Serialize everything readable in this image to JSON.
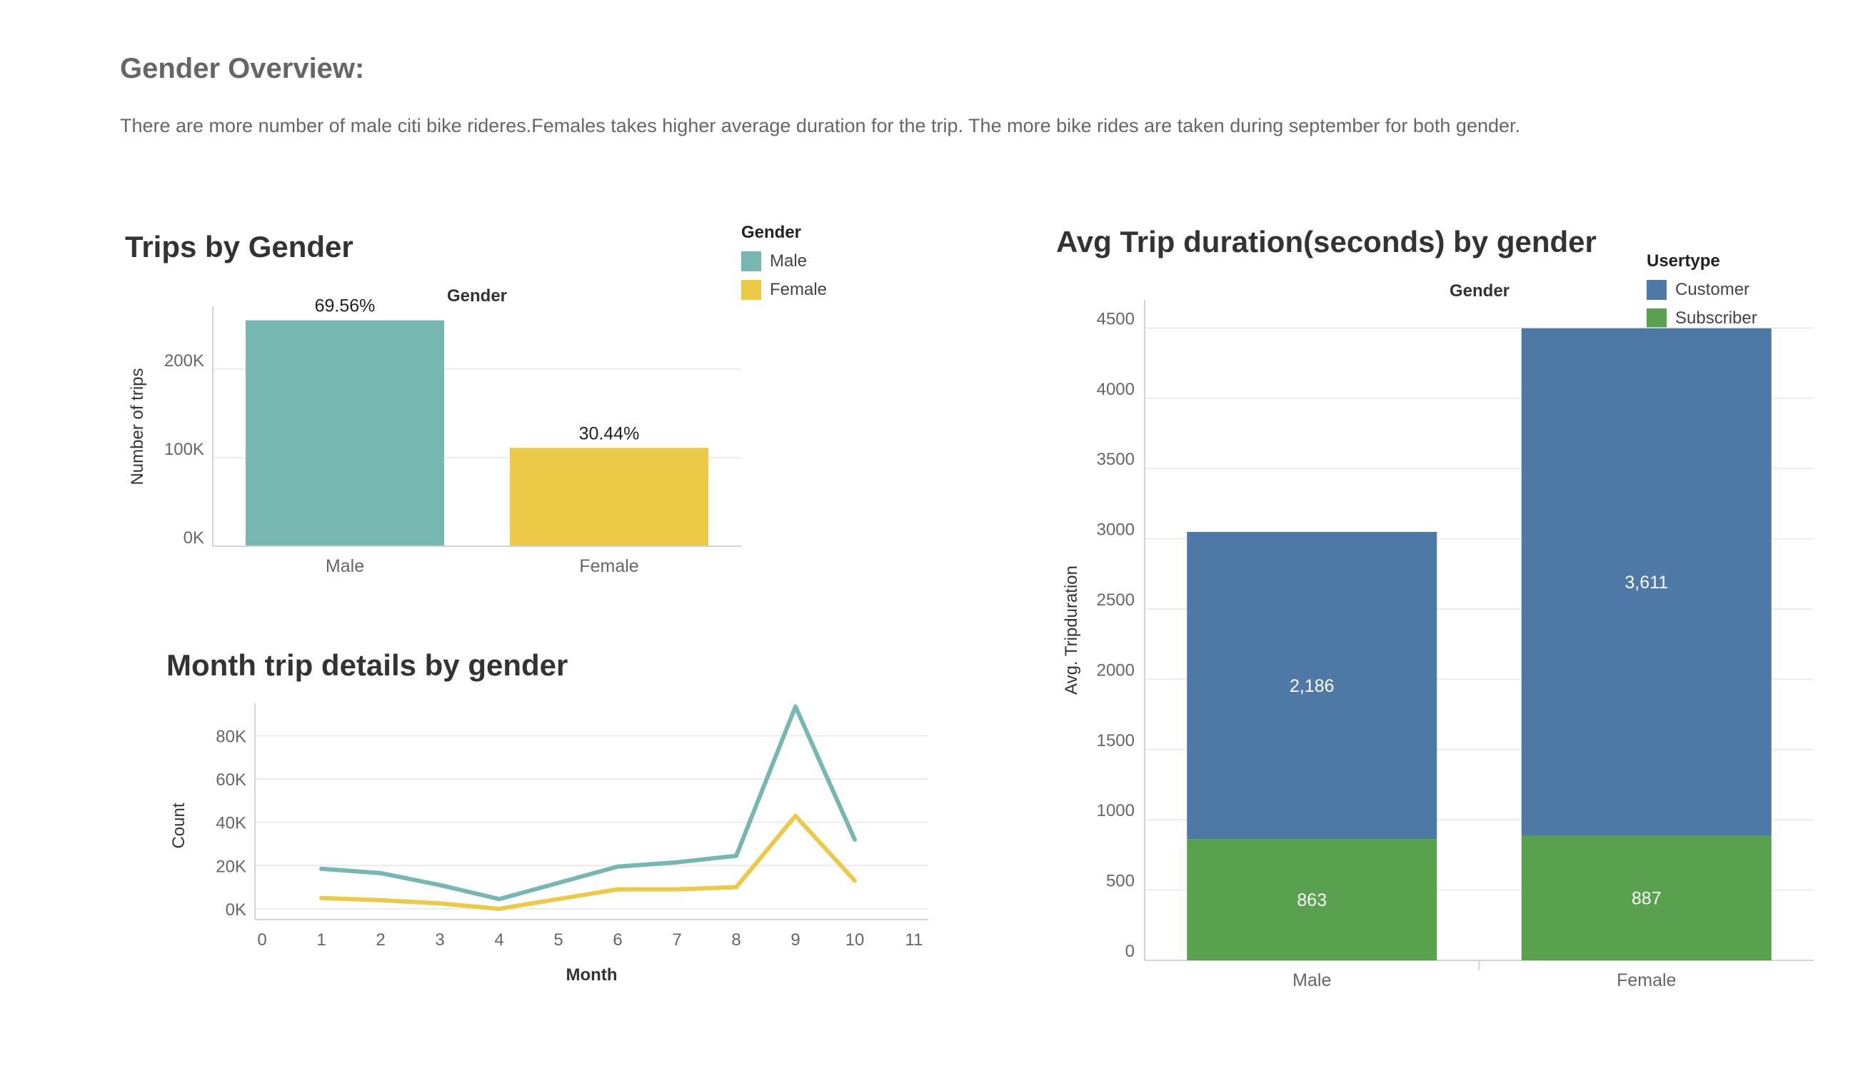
{
  "page": {
    "heading": "Gender Overview:",
    "description": "There are  more number of male citi bike rideres.Females takes higher average duration for the trip. The more bike rides are taken during september for both gender."
  },
  "legends": {
    "gender": {
      "title": "Gender",
      "items": [
        {
          "label": "Male",
          "color": "#76b7b2"
        },
        {
          "label": "Female",
          "color": "#edc948"
        }
      ]
    },
    "usertype": {
      "title": "Usertype",
      "items": [
        {
          "label": "Customer",
          "color": "#4e79a7"
        },
        {
          "label": "Subscriber",
          "color": "#59a14f"
        }
      ]
    }
  },
  "chart_data": [
    {
      "type": "bar",
      "title": "Trips by Gender",
      "header": "Gender",
      "categories": [
        "Male",
        "Female"
      ],
      "values": [
        255000,
        111000
      ],
      "labels": [
        "69.56%",
        "30.44%"
      ],
      "colors": [
        "#76b7b2",
        "#edc948"
      ],
      "ylabel": "Number of trips",
      "ylim": [
        0,
        270000
      ],
      "yticks": [
        0,
        100000,
        200000
      ],
      "ytick_labels": [
        "0K",
        "100K",
        "200K"
      ],
      "grid": true
    },
    {
      "type": "line",
      "title": "Month trip details by gender",
      "xlabel": "Month",
      "ylabel": "Count",
      "xlim": [
        0,
        11
      ],
      "xticks": [
        0,
        1,
        2,
        3,
        4,
        5,
        6,
        7,
        8,
        9,
        10,
        11
      ],
      "ylim": [
        -5000,
        95000
      ],
      "yticks": [
        0,
        20000,
        40000,
        60000,
        80000
      ],
      "ytick_labels": [
        "0K",
        "20K",
        "40K",
        "60K",
        "80K"
      ],
      "grid": true,
      "series": [
        {
          "name": "Male",
          "color": "#76b7b2",
          "x": [
            1,
            2,
            3,
            4,
            5,
            6,
            7,
            8,
            9,
            10
          ],
          "values": [
            18500,
            16500,
            11000,
            4500,
            12000,
            19500,
            21500,
            24500,
            93500,
            32000
          ]
        },
        {
          "name": "Female",
          "color": "#edc948",
          "x": [
            1,
            2,
            3,
            4,
            5,
            6,
            7,
            8,
            9,
            10
          ],
          "values": [
            5000,
            4000,
            2500,
            0,
            4500,
            9000,
            9000,
            10000,
            43000,
            13000
          ]
        }
      ]
    },
    {
      "type": "bar",
      "stacked": true,
      "title": "Avg Trip duration(seconds) by gender",
      "header": "Gender",
      "categories": [
        "Male",
        "Female"
      ],
      "series": [
        {
          "name": "Subscriber",
          "color": "#59a14f",
          "values": [
            863,
            887
          ],
          "labels": [
            "863",
            "887"
          ]
        },
        {
          "name": "Customer",
          "color": "#4e79a7",
          "values": [
            2186,
            3611
          ],
          "labels": [
            "2,186",
            "3,611"
          ]
        }
      ],
      "ylabel": "Avg. Tripduration",
      "ylim": [
        0,
        4700
      ],
      "yticks": [
        0,
        500,
        1000,
        1500,
        2000,
        2500,
        3000,
        3500,
        4000,
        4500
      ],
      "grid": true
    }
  ]
}
